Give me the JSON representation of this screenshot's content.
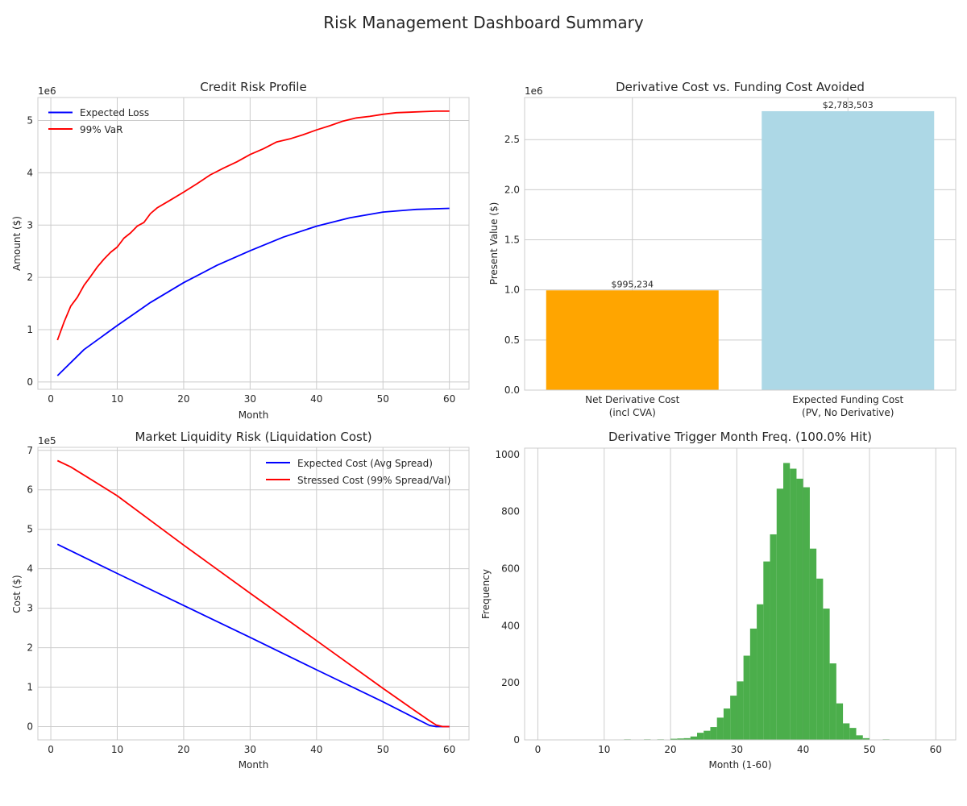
{
  "page": {
    "title": "Risk Management Dashboard Summary"
  },
  "colors": {
    "expected_loss": "#0000ff",
    "var99": "#ff0000",
    "net_derivative": "#ffa500",
    "funding": "#add8e6",
    "histogram": "#2ca02c",
    "grid": "#cccccc",
    "frame": "#cccccc"
  },
  "chart_data": [
    {
      "type": "line",
      "title": "Credit Risk Profile",
      "xlabel": "Month",
      "ylabel": "Amount ($)",
      "offset_label": "1e6",
      "xlim": [
        -1.95,
        62.95
      ],
      "ylim": [
        -140000,
        5440000
      ],
      "xticks": [
        0,
        10,
        20,
        30,
        40,
        50,
        60
      ],
      "yticks": [
        0,
        1,
        2,
        3,
        4,
        5
      ],
      "ytick_scale": 1000000,
      "legend": "upper-left",
      "series": [
        {
          "name": "Expected Loss",
          "color": "#0000ff",
          "x": [
            1,
            5,
            10,
            15,
            20,
            25,
            30,
            35,
            40,
            45,
            50,
            55,
            60
          ],
          "y": [
            120000,
            620000,
            1080000,
            1520000,
            1900000,
            2230000,
            2510000,
            2770000,
            2980000,
            3140000,
            3250000,
            3300000,
            3320000
          ]
        },
        {
          "name": "99% VaR",
          "color": "#ff0000",
          "x": [
            1,
            2,
            3,
            4,
            5,
            6,
            7,
            8,
            9,
            10,
            11,
            12,
            13,
            14,
            15,
            16,
            18,
            20,
            22,
            24,
            26,
            28,
            30,
            32,
            34,
            36,
            38,
            40,
            42,
            44,
            46,
            48,
            50,
            52,
            54,
            56,
            58,
            60
          ],
          "y": [
            800000,
            1150000,
            1450000,
            1620000,
            1850000,
            2020000,
            2200000,
            2350000,
            2480000,
            2580000,
            2750000,
            2850000,
            2980000,
            3050000,
            3220000,
            3330000,
            3480000,
            3630000,
            3790000,
            3960000,
            4090000,
            4210000,
            4350000,
            4460000,
            4590000,
            4650000,
            4730000,
            4820000,
            4900000,
            4990000,
            5050000,
            5080000,
            5120000,
            5150000,
            5160000,
            5170000,
            5180000,
            5180000
          ]
        }
      ]
    },
    {
      "type": "bar",
      "title": "Derivative Cost vs. Funding Cost Avoided",
      "xlabel": "",
      "ylabel": "Present Value ($)",
      "offset_label": "1e6",
      "ylim": [
        0,
        2920000
      ],
      "yticks": [
        0.0,
        0.5,
        1.0,
        1.5,
        2.0,
        2.5
      ],
      "ytick_scale": 1000000,
      "categories": [
        [
          "Net Derivative Cost",
          "(incl CVA)"
        ],
        [
          "Expected Funding Cost",
          "(PV, No Derivative)"
        ]
      ],
      "values": [
        995234,
        2783503
      ],
      "value_labels": [
        "$995,234",
        "$2,783,503"
      ],
      "bar_colors": [
        "#ffa500",
        "#add8e6"
      ]
    },
    {
      "type": "line",
      "title": "Market Liquidity Risk (Liquidation Cost)",
      "xlabel": "Month",
      "ylabel": "Cost ($)",
      "offset_label": "1e5",
      "xlim": [
        -1.95,
        62.95
      ],
      "ylim": [
        -33700,
        707700
      ],
      "xticks": [
        0,
        10,
        20,
        30,
        40,
        50,
        60
      ],
      "yticks": [
        0,
        1,
        2,
        3,
        4,
        5,
        6,
        7
      ],
      "ytick_scale": 100000,
      "legend": "upper-right",
      "series": [
        {
          "name": "Expected Cost (Avg Spread)",
          "color": "#0000ff",
          "x": [
            1,
            10,
            20,
            30,
            40,
            50,
            55,
            57,
            58,
            59,
            60
          ],
          "y": [
            462000,
            388000,
            307000,
            226000,
            144000,
            63000,
            20000,
            3000,
            0,
            0,
            0
          ]
        },
        {
          "name": "Stressed Cost (99% Spread/Val)",
          "color": "#ff0000",
          "x": [
            1,
            3,
            10,
            20,
            30,
            40,
            50,
            55,
            57,
            58,
            59,
            60
          ],
          "y": [
            674000,
            658000,
            585000,
            460000,
            338000,
            218000,
            97000,
            38000,
            15000,
            4000,
            0,
            0
          ]
        }
      ]
    },
    {
      "type": "bar",
      "subtype": "histogram",
      "title": "Derivative Trigger Month Freq. (100.0% Hit)",
      "xlabel": "Month (1-60)",
      "ylabel": "Frequency",
      "xlim": [
        -2,
        63
      ],
      "ylim": [
        0,
        1022
      ],
      "xticks": [
        0,
        10,
        20,
        30,
        40,
        50,
        60
      ],
      "yticks": [
        0,
        200,
        400,
        600,
        800,
        1000
      ],
      "bin_width": 1,
      "bin_starts": [
        12,
        13,
        14,
        15,
        16,
        17,
        18,
        19,
        20,
        21,
        22,
        23,
        24,
        25,
        26,
        27,
        28,
        29,
        30,
        31,
        32,
        33,
        34,
        35,
        36,
        37,
        38,
        39,
        40,
        41,
        42,
        43,
        44,
        45,
        46,
        47,
        48,
        49,
        50,
        51,
        52
      ],
      "counts": [
        0,
        2,
        0,
        0,
        2,
        0,
        2,
        1,
        4,
        5,
        6,
        12,
        25,
        32,
        45,
        78,
        110,
        155,
        205,
        295,
        390,
        475,
        625,
        720,
        880,
        970,
        950,
        915,
        885,
        670,
        565,
        460,
        268,
        128,
        58,
        42,
        16,
        6,
        1,
        0,
        2
      ],
      "color": "#2ca02c"
    }
  ]
}
